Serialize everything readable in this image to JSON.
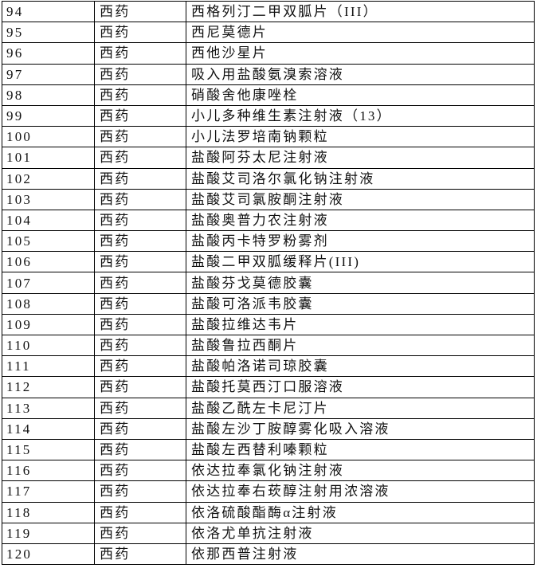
{
  "table": {
    "rows": [
      [
        "94",
        "西药",
        "西格列汀二甲双胍片（III）"
      ],
      [
        "95",
        "西药",
        "西尼莫德片"
      ],
      [
        "96",
        "西药",
        "西他沙星片"
      ],
      [
        "97",
        "西药",
        "吸入用盐酸氨溴索溶液"
      ],
      [
        "98",
        "西药",
        "硝酸舍他康唑栓"
      ],
      [
        "99",
        "西药",
        "小儿多种维生素注射液（13）"
      ],
      [
        "100",
        "西药",
        "小儿法罗培南钠颗粒"
      ],
      [
        "101",
        "西药",
        "盐酸阿芬太尼注射液"
      ],
      [
        "102",
        "西药",
        "盐酸艾司洛尔氯化钠注射液"
      ],
      [
        "103",
        "西药",
        "盐酸艾司氯胺酮注射液"
      ],
      [
        "104",
        "西药",
        "盐酸奥普力农注射液"
      ],
      [
        "105",
        "西药",
        "盐酸丙卡特罗粉雾剂"
      ],
      [
        "106",
        "西药",
        "盐酸二甲双胍缓释片(III)"
      ],
      [
        "107",
        "西药",
        "盐酸芬戈莫德胶囊"
      ],
      [
        "108",
        "西药",
        "盐酸可洛派韦胶囊"
      ],
      [
        "109",
        "西药",
        "盐酸拉维达韦片"
      ],
      [
        "110",
        "西药",
        "盐酸鲁拉西酮片"
      ],
      [
        "111",
        "西药",
        "盐酸帕洛诺司琼胶囊"
      ],
      [
        "112",
        "西药",
        "盐酸托莫西汀口服溶液"
      ],
      [
        "113",
        "西药",
        "盐酸乙酰左卡尼汀片"
      ],
      [
        "114",
        "西药",
        "盐酸左沙丁胺醇雾化吸入溶液"
      ],
      [
        "115",
        "西药",
        "盐酸左西替利嗪颗粒"
      ],
      [
        "116",
        "西药",
        "依达拉奉氯化钠注射液"
      ],
      [
        "117",
        "西药",
        "依达拉奉右莰醇注射用浓溶液"
      ],
      [
        "118",
        "西药",
        "依洛硫酸酯酶α注射液"
      ],
      [
        "119",
        "西药",
        "依洛尤单抗注射液"
      ],
      [
        "120",
        "西药",
        "依那西普注射液"
      ]
    ]
  }
}
